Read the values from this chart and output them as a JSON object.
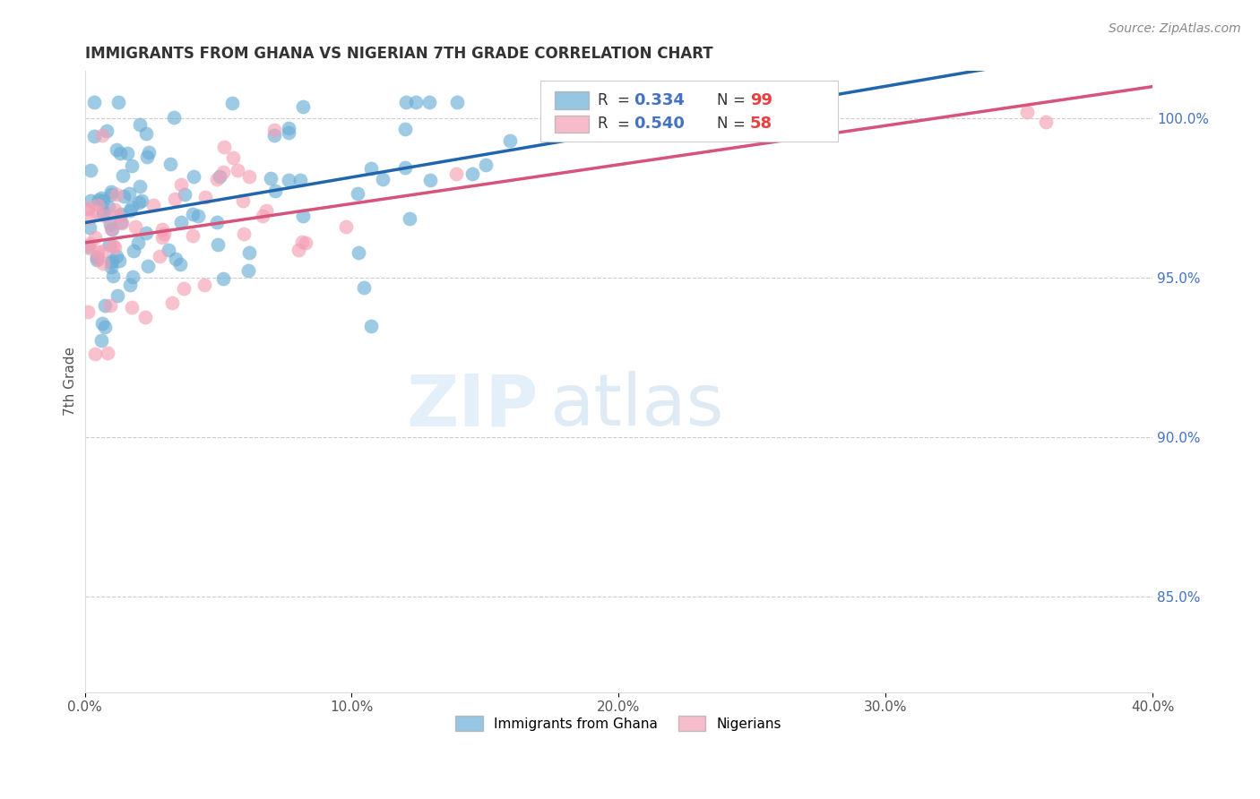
{
  "title": "IMMIGRANTS FROM GHANA VS NIGERIAN 7TH GRADE CORRELATION CHART",
  "source": "Source: ZipAtlas.com",
  "ylabel": "7th Grade",
  "ylabel_right_ticks": [
    "100.0%",
    "95.0%",
    "90.0%",
    "85.0%"
  ],
  "ylabel_right_vals": [
    1.0,
    0.95,
    0.9,
    0.85
  ],
  "xmin": 0.0,
  "xmax": 0.4,
  "ymin": 0.82,
  "ymax": 1.015,
  "legend_blue_r": "0.334",
  "legend_blue_n": "99",
  "legend_pink_r": "0.540",
  "legend_pink_n": "58",
  "blue_color": "#6baed6",
  "pink_color": "#f4a0b5",
  "blue_line_color": "#2166ac",
  "pink_line_color": "#d6537a",
  "r_text_color": "#4472c4",
  "n_text_color": "#e84040",
  "watermark_zip": "ZIP",
  "watermark_atlas": "atlas",
  "background_color": "#ffffff",
  "grid_color": "#cccccc"
}
